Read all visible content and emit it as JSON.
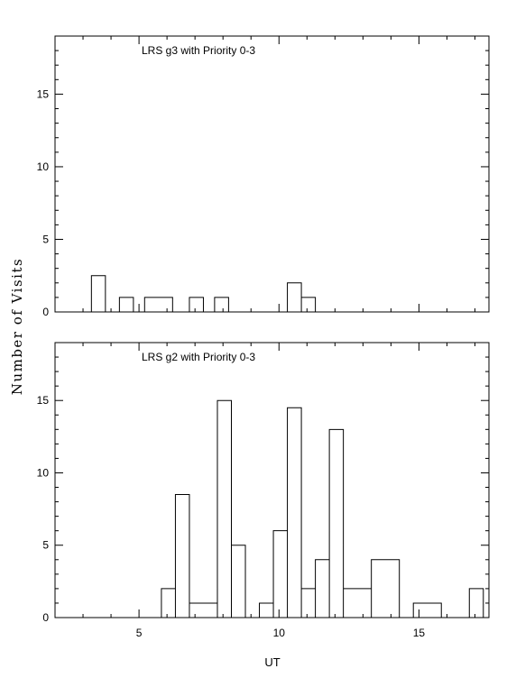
{
  "chart_data": {
    "type": "bar",
    "ylabel": "Number of Visits",
    "xlabel": "UT",
    "xlim": [
      2,
      17.5
    ],
    "x_ticks": [
      "5",
      "10",
      "15"
    ],
    "y_ticks": [
      "0",
      "5",
      "10",
      "15"
    ],
    "panels": [
      {
        "title": "LRS g3 with Priority 0-3",
        "ylim": [
          0,
          19
        ],
        "bins": [
          {
            "x0": 3.3,
            "x1": 3.8,
            "y": 2.5
          },
          {
            "x0": 3.8,
            "x1": 4.3,
            "y": 0
          },
          {
            "x0": 4.3,
            "x1": 4.8,
            "y": 1
          },
          {
            "x0": 4.8,
            "x1": 5.2,
            "y": 0
          },
          {
            "x0": 5.2,
            "x1": 6.2,
            "y": 1
          },
          {
            "x0": 6.2,
            "x1": 6.8,
            "y": 0
          },
          {
            "x0": 6.8,
            "x1": 7.3,
            "y": 1
          },
          {
            "x0": 7.3,
            "x1": 7.7,
            "y": 0
          },
          {
            "x0": 7.7,
            "x1": 8.2,
            "y": 1
          },
          {
            "x0": 8.2,
            "x1": 10.3,
            "y": 0
          },
          {
            "x0": 10.3,
            "x1": 10.8,
            "y": 2
          },
          {
            "x0": 10.8,
            "x1": 11.3,
            "y": 1
          }
        ]
      },
      {
        "title": "LRS g2 with Priority 0-3",
        "ylim": [
          0,
          19
        ],
        "bins": [
          {
            "x0": 5.8,
            "x1": 6.3,
            "y": 2
          },
          {
            "x0": 6.3,
            "x1": 6.8,
            "y": 8.5
          },
          {
            "x0": 6.8,
            "x1": 7.8,
            "y": 1
          },
          {
            "x0": 7.8,
            "x1": 8.3,
            "y": 15
          },
          {
            "x0": 8.3,
            "x1": 8.8,
            "y": 5
          },
          {
            "x0": 8.8,
            "x1": 9.3,
            "y": 0
          },
          {
            "x0": 9.3,
            "x1": 9.8,
            "y": 1
          },
          {
            "x0": 9.8,
            "x1": 10.3,
            "y": 6
          },
          {
            "x0": 10.3,
            "x1": 10.8,
            "y": 14.5
          },
          {
            "x0": 10.8,
            "x1": 11.3,
            "y": 2
          },
          {
            "x0": 11.3,
            "x1": 11.8,
            "y": 4
          },
          {
            "x0": 11.8,
            "x1": 12.3,
            "y": 13
          },
          {
            "x0": 12.3,
            "x1": 13.3,
            "y": 2
          },
          {
            "x0": 13.3,
            "x1": 14.3,
            "y": 4
          },
          {
            "x0": 14.3,
            "x1": 14.8,
            "y": 0
          },
          {
            "x0": 14.8,
            "x1": 15.8,
            "y": 1
          },
          {
            "x0": 15.8,
            "x1": 16.8,
            "y": 0
          },
          {
            "x0": 16.8,
            "x1": 17.3,
            "y": 2
          }
        ]
      }
    ]
  }
}
